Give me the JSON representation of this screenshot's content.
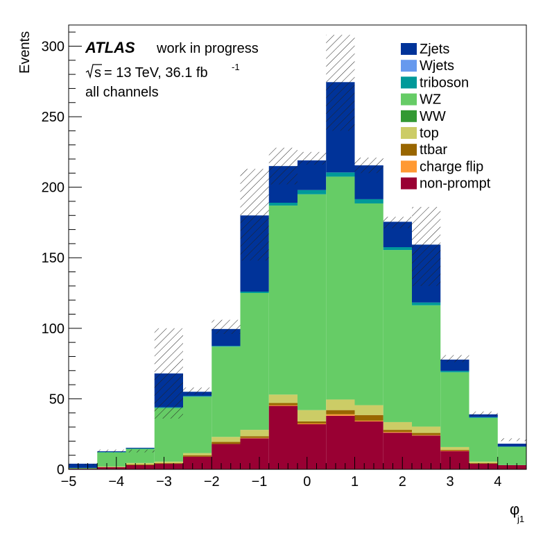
{
  "chart_data": {
    "type": "bar",
    "subtype": "stacked-histogram",
    "title": "",
    "xlabel": "φ",
    "xlabel_sub": "j1",
    "ylabel": "Events",
    "xlim": [
      -5,
      4.6
    ],
    "ylim": [
      0,
      315
    ],
    "x_ticks": [
      "−5",
      "−4",
      "−3",
      "−2",
      "−1",
      "0",
      "1",
      "2",
      "3",
      "4"
    ],
    "x_tick_values": [
      -5,
      -4,
      -3,
      -2,
      -1,
      0,
      1,
      2,
      3,
      4
    ],
    "y_ticks": [
      "0",
      "50",
      "100",
      "150",
      "200",
      "250",
      "300"
    ],
    "y_tick_values": [
      0,
      50,
      100,
      150,
      200,
      250,
      300
    ],
    "bin_edges": [
      -5.0,
      -4.4,
      -3.8,
      -3.2,
      -2.6,
      -2.0,
      -1.4,
      -0.8,
      -0.2,
      0.4,
      1.0,
      1.6,
      2.2,
      2.8,
      3.4,
      4.0,
      4.6
    ],
    "series": [
      {
        "name": "non-prompt",
        "color": "#990033",
        "values": [
          0.5,
          1.5,
          3,
          4,
          9,
          18,
          22,
          45,
          32,
          38,
          34,
          26,
          24,
          13,
          4,
          3
        ]
      },
      {
        "name": "charge flip",
        "color": "#ff9933",
        "values": [
          0,
          0,
          0,
          0,
          0,
          0,
          0.3,
          0.5,
          0.5,
          1,
          0.5,
          0.5,
          0.3,
          0.3,
          0,
          0
        ]
      },
      {
        "name": "ttbar",
        "color": "#996600",
        "values": [
          0,
          0,
          0.5,
          0.5,
          1,
          1.5,
          1.2,
          1.5,
          1.5,
          3,
          4,
          1.5,
          1.5,
          0.5,
          0.5,
          0
        ]
      },
      {
        "name": "top",
        "color": "#cccc66",
        "values": [
          0,
          0.5,
          1,
          1,
          1.5,
          3.5,
          4.5,
          6,
          8,
          7.5,
          7,
          5.5,
          4.5,
          2,
          1,
          0
        ]
      },
      {
        "name": "WW",
        "color": "#339933",
        "values": [
          0,
          0,
          0,
          0,
          0,
          0,
          0,
          0,
          0,
          0,
          0,
          0,
          0,
          0,
          0,
          0
        ]
      },
      {
        "name": "WZ",
        "color": "#66cc66",
        "values": [
          0.5,
          10,
          10,
          38,
          40,
          64,
          97,
          134,
          153,
          158,
          143,
          122,
          86,
          53,
          31,
          13
        ]
      },
      {
        "name": "triboson",
        "color": "#009999",
        "values": [
          0,
          0.3,
          0.3,
          0.5,
          0.5,
          0.5,
          1,
          2,
          3,
          3,
          3,
          2,
          2,
          1,
          0.5,
          0.2
        ]
      },
      {
        "name": "Wjets",
        "color": "#6699ee",
        "values": [
          0,
          0,
          0,
          0,
          0,
          0,
          0,
          0,
          0,
          0,
          0,
          0,
          0,
          0,
          0,
          0
        ]
      },
      {
        "name": "Zjets",
        "color": "#003399",
        "values": [
          3,
          0.5,
          0.5,
          24,
          3,
          12,
          54,
          26,
          21,
          64,
          24,
          18,
          41,
          8,
          2,
          2
        ]
      }
    ],
    "uncertainty_upper": [
      4,
      14,
      14,
      100,
      58,
      106,
      213,
      228,
      225,
      308,
      221,
      179,
      186,
      81,
      41,
      22
    ],
    "uncertainty_lower": [
      3,
      12,
      12,
      36,
      53,
      96,
      148,
      202,
      216,
      240,
      210,
      171,
      130,
      76,
      38,
      20
    ],
    "legend": [
      "Zjets",
      "Wjets",
      "triboson",
      "WZ",
      "WW",
      "top",
      "ttbar",
      "charge flip",
      "non-prompt"
    ],
    "legend_position": "top-right"
  },
  "annotations": {
    "atlas_label": "ATLAS",
    "atlas_status": "work in progress",
    "energy_sqrt": "s",
    "energy_label": "= 13 TeV, 36.1 fb",
    "lumi_exponent": "-1",
    "channel_label": "all channels"
  }
}
